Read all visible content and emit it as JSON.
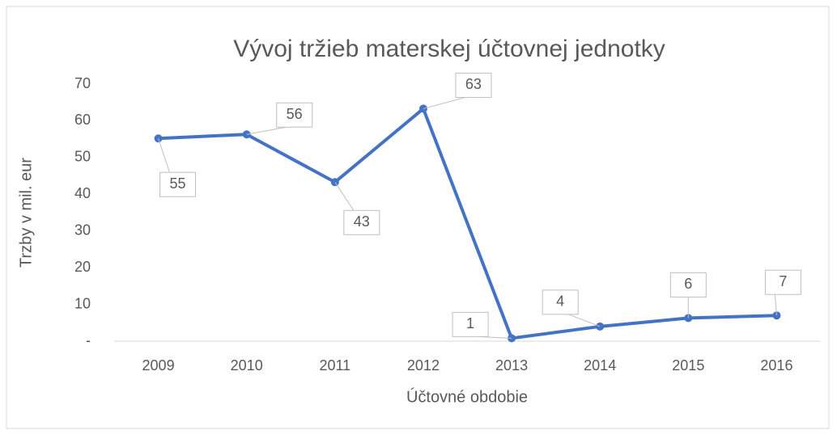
{
  "chart_data": {
    "type": "line",
    "title": "Vývoj tržieb materskej účtovnej jednotky",
    "x_label": "Účtovné obdobie",
    "y_label": "Trzby v mil. eur",
    "categories": [
      "2009",
      "2010",
      "2011",
      "2012",
      "2013",
      "2014",
      "2015",
      "2016"
    ],
    "series": [
      {
        "name": "Trzby",
        "color": "#4472c4",
        "values": [
          55.2,
          56.3,
          43.3,
          63.3,
          0.8,
          4,
          6.3,
          7
        ],
        "value_labels": [
          "55",
          "56",
          "43",
          "63",
          "1",
          "4",
          "6",
          "7"
        ]
      }
    ],
    "ylim": [
      0,
      70
    ],
    "yticks": [
      {
        "value": 0,
        "label": "-"
      },
      10,
      20,
      30,
      40,
      50,
      60,
      70
    ],
    "grid": false
  }
}
